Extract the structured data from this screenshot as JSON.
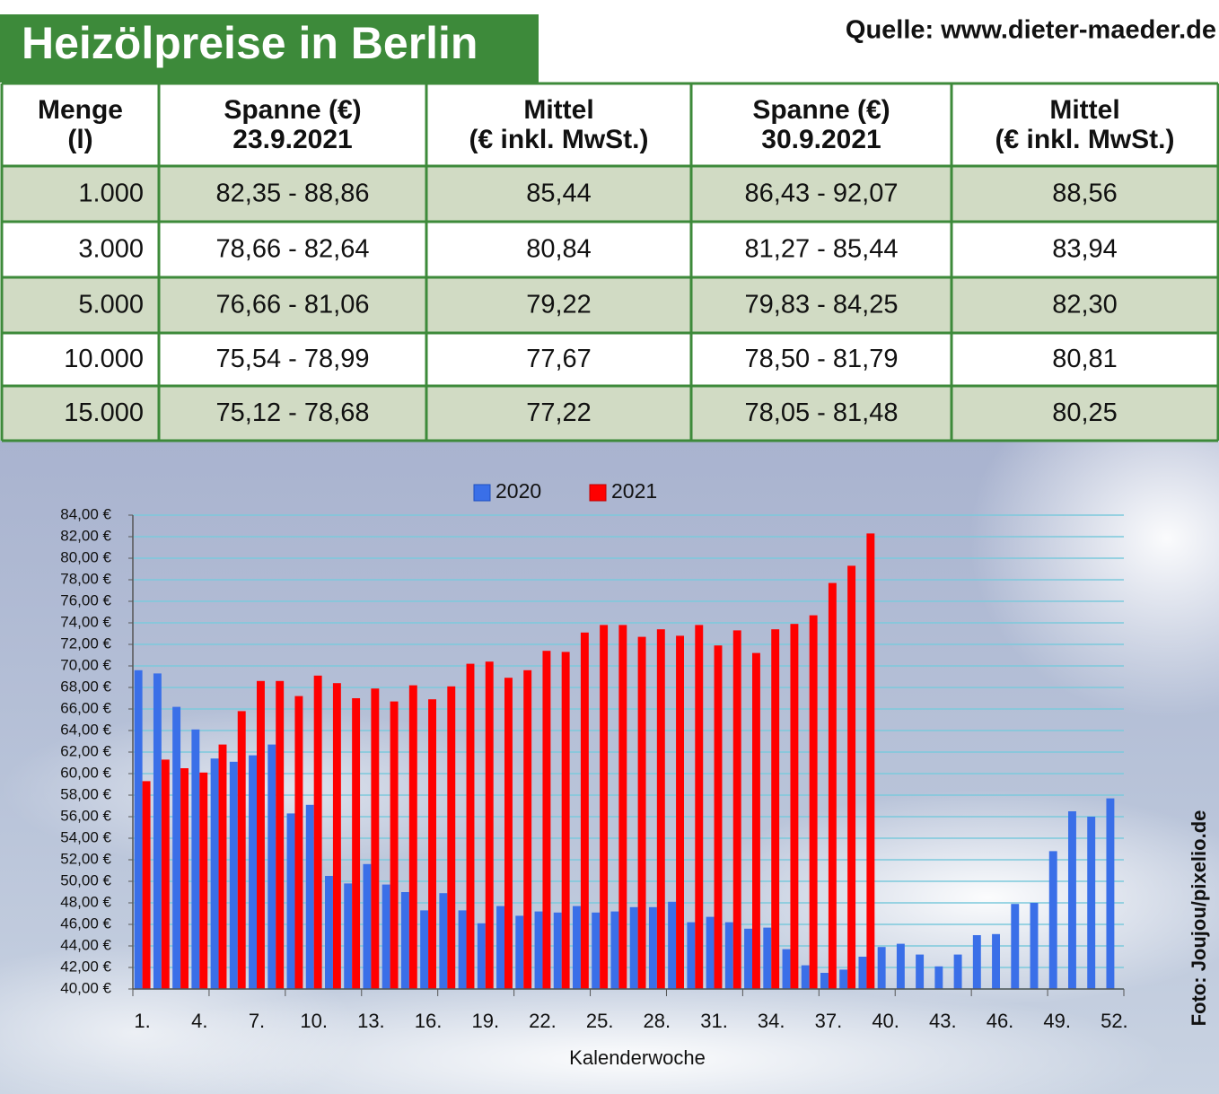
{
  "header": {
    "title": "Heizölpreise in Berlin",
    "source": "Quelle: www.dieter-maeder.de"
  },
  "table": {
    "columns": [
      [
        "Menge",
        "(l)"
      ],
      [
        "Spanne (€)",
        "23.9.2021"
      ],
      [
        "Mittel",
        "(€ inkl. MwSt.)"
      ],
      [
        "Spanne (€)",
        "30.9.2021"
      ],
      [
        "Mittel",
        "(€ inkl. MwSt.)"
      ]
    ],
    "rows": [
      [
        "1.000",
        "82,35 - 88,86",
        "85,44",
        "86,43 - 92,07",
        "88,56"
      ],
      [
        "3.000",
        "78,66 - 82,64",
        "80,84",
        "81,27 - 85,44",
        "83,94"
      ],
      [
        "5.000",
        "76,66 - 81,06",
        "79,22",
        "79,83 - 84,25",
        "82,30"
      ],
      [
        "10.000",
        "75,54 - 78,99",
        "77,67",
        "78,50 - 81,79",
        "80,81"
      ],
      [
        "15.000",
        "75,12 - 78,68",
        "77,22",
        "78,05 - 81,48",
        "80,25"
      ]
    ]
  },
  "photo_credit": "Foto: Joujou/pixelio.de",
  "chart_data": {
    "type": "bar",
    "x_label": "Kalenderwoche",
    "legend": "top",
    "categories": [
      "1.",
      null,
      null,
      "4.",
      null,
      null,
      "7.",
      null,
      null,
      "10.",
      null,
      null,
      "13.",
      null,
      null,
      "16.",
      null,
      null,
      "19.",
      null,
      null,
      "22.",
      null,
      null,
      "25.",
      null,
      null,
      "28.",
      null,
      null,
      "31.",
      null,
      null,
      "34.",
      null,
      null,
      "37.",
      null,
      null,
      "40.",
      null,
      null,
      "43.",
      null,
      null,
      "46.",
      null,
      null,
      "49.",
      null,
      null,
      "52."
    ],
    "series": [
      {
        "name": "2020",
        "color": "#3a6fe8",
        "values": [
          69.6,
          69.3,
          66.2,
          64.1,
          61.4,
          61.1,
          61.7,
          62.7,
          56.3,
          57.1,
          50.5,
          49.8,
          51.6,
          49.7,
          49.0,
          47.3,
          48.9,
          47.3,
          46.1,
          47.7,
          46.8,
          47.2,
          47.1,
          47.7,
          47.1,
          47.2,
          47.6,
          47.6,
          48.1,
          46.2,
          46.7,
          46.2,
          45.6,
          45.7,
          43.7,
          42.2,
          41.5,
          41.8,
          43.0,
          43.9,
          44.2,
          43.2,
          42.1,
          43.2,
          45.0,
          45.1,
          47.9,
          48.0,
          52.8,
          56.5,
          56.0,
          57.7
        ]
      },
      {
        "name": "2021",
        "color": "#ff0000",
        "values": [
          59.3,
          61.3,
          60.5,
          60.1,
          62.7,
          65.8,
          68.6,
          68.6,
          67.2,
          69.1,
          68.4,
          67.0,
          67.9,
          66.7,
          68.2,
          66.9,
          68.1,
          70.2,
          70.4,
          68.9,
          69.6,
          71.4,
          71.3,
          73.1,
          73.8,
          73.8,
          72.7,
          73.4,
          72.8,
          73.8,
          71.9,
          73.3,
          71.2,
          73.4,
          73.9,
          74.7,
          77.7,
          79.3,
          82.3,
          null,
          null,
          null,
          null,
          null,
          null,
          null,
          null,
          null,
          null,
          null,
          null,
          null
        ]
      }
    ],
    "ylim": [
      40,
      84
    ],
    "yticks": [
      {
        "value": 40,
        "label": "40,00 €"
      },
      {
        "value": 42,
        "label": "42,00 €"
      },
      {
        "value": 44,
        "label": "44,00 €"
      },
      {
        "value": 46,
        "label": "46,00 €"
      },
      {
        "value": 48,
        "label": "48,00 €"
      },
      {
        "value": 50,
        "label": "50,00 €"
      },
      {
        "value": 52,
        "label": "52,00 €"
      },
      {
        "value": 54,
        "label": "54,00 €"
      },
      {
        "value": 56,
        "label": "56,00 €"
      },
      {
        "value": 58,
        "label": "58,00 €"
      },
      {
        "value": 60,
        "label": "60,00 €"
      },
      {
        "value": 62,
        "label": "62,00 €"
      },
      {
        "value": 64,
        "label": "64,00 €"
      },
      {
        "value": 66,
        "label": "66,00 €"
      },
      {
        "value": 68,
        "label": "68,00 €"
      },
      {
        "value": 70,
        "label": "70,00 €"
      },
      {
        "value": 72,
        "label": "72,00 €"
      },
      {
        "value": 74,
        "label": "74,00 €"
      },
      {
        "value": 76,
        "label": "76,00 €"
      },
      {
        "value": 78,
        "label": "78,00 €"
      },
      {
        "value": 80,
        "label": "80,00 €"
      },
      {
        "value": 82,
        "label": "82,00 €"
      },
      {
        "value": 84,
        "label": "84,00 €"
      }
    ],
    "grid": true
  }
}
